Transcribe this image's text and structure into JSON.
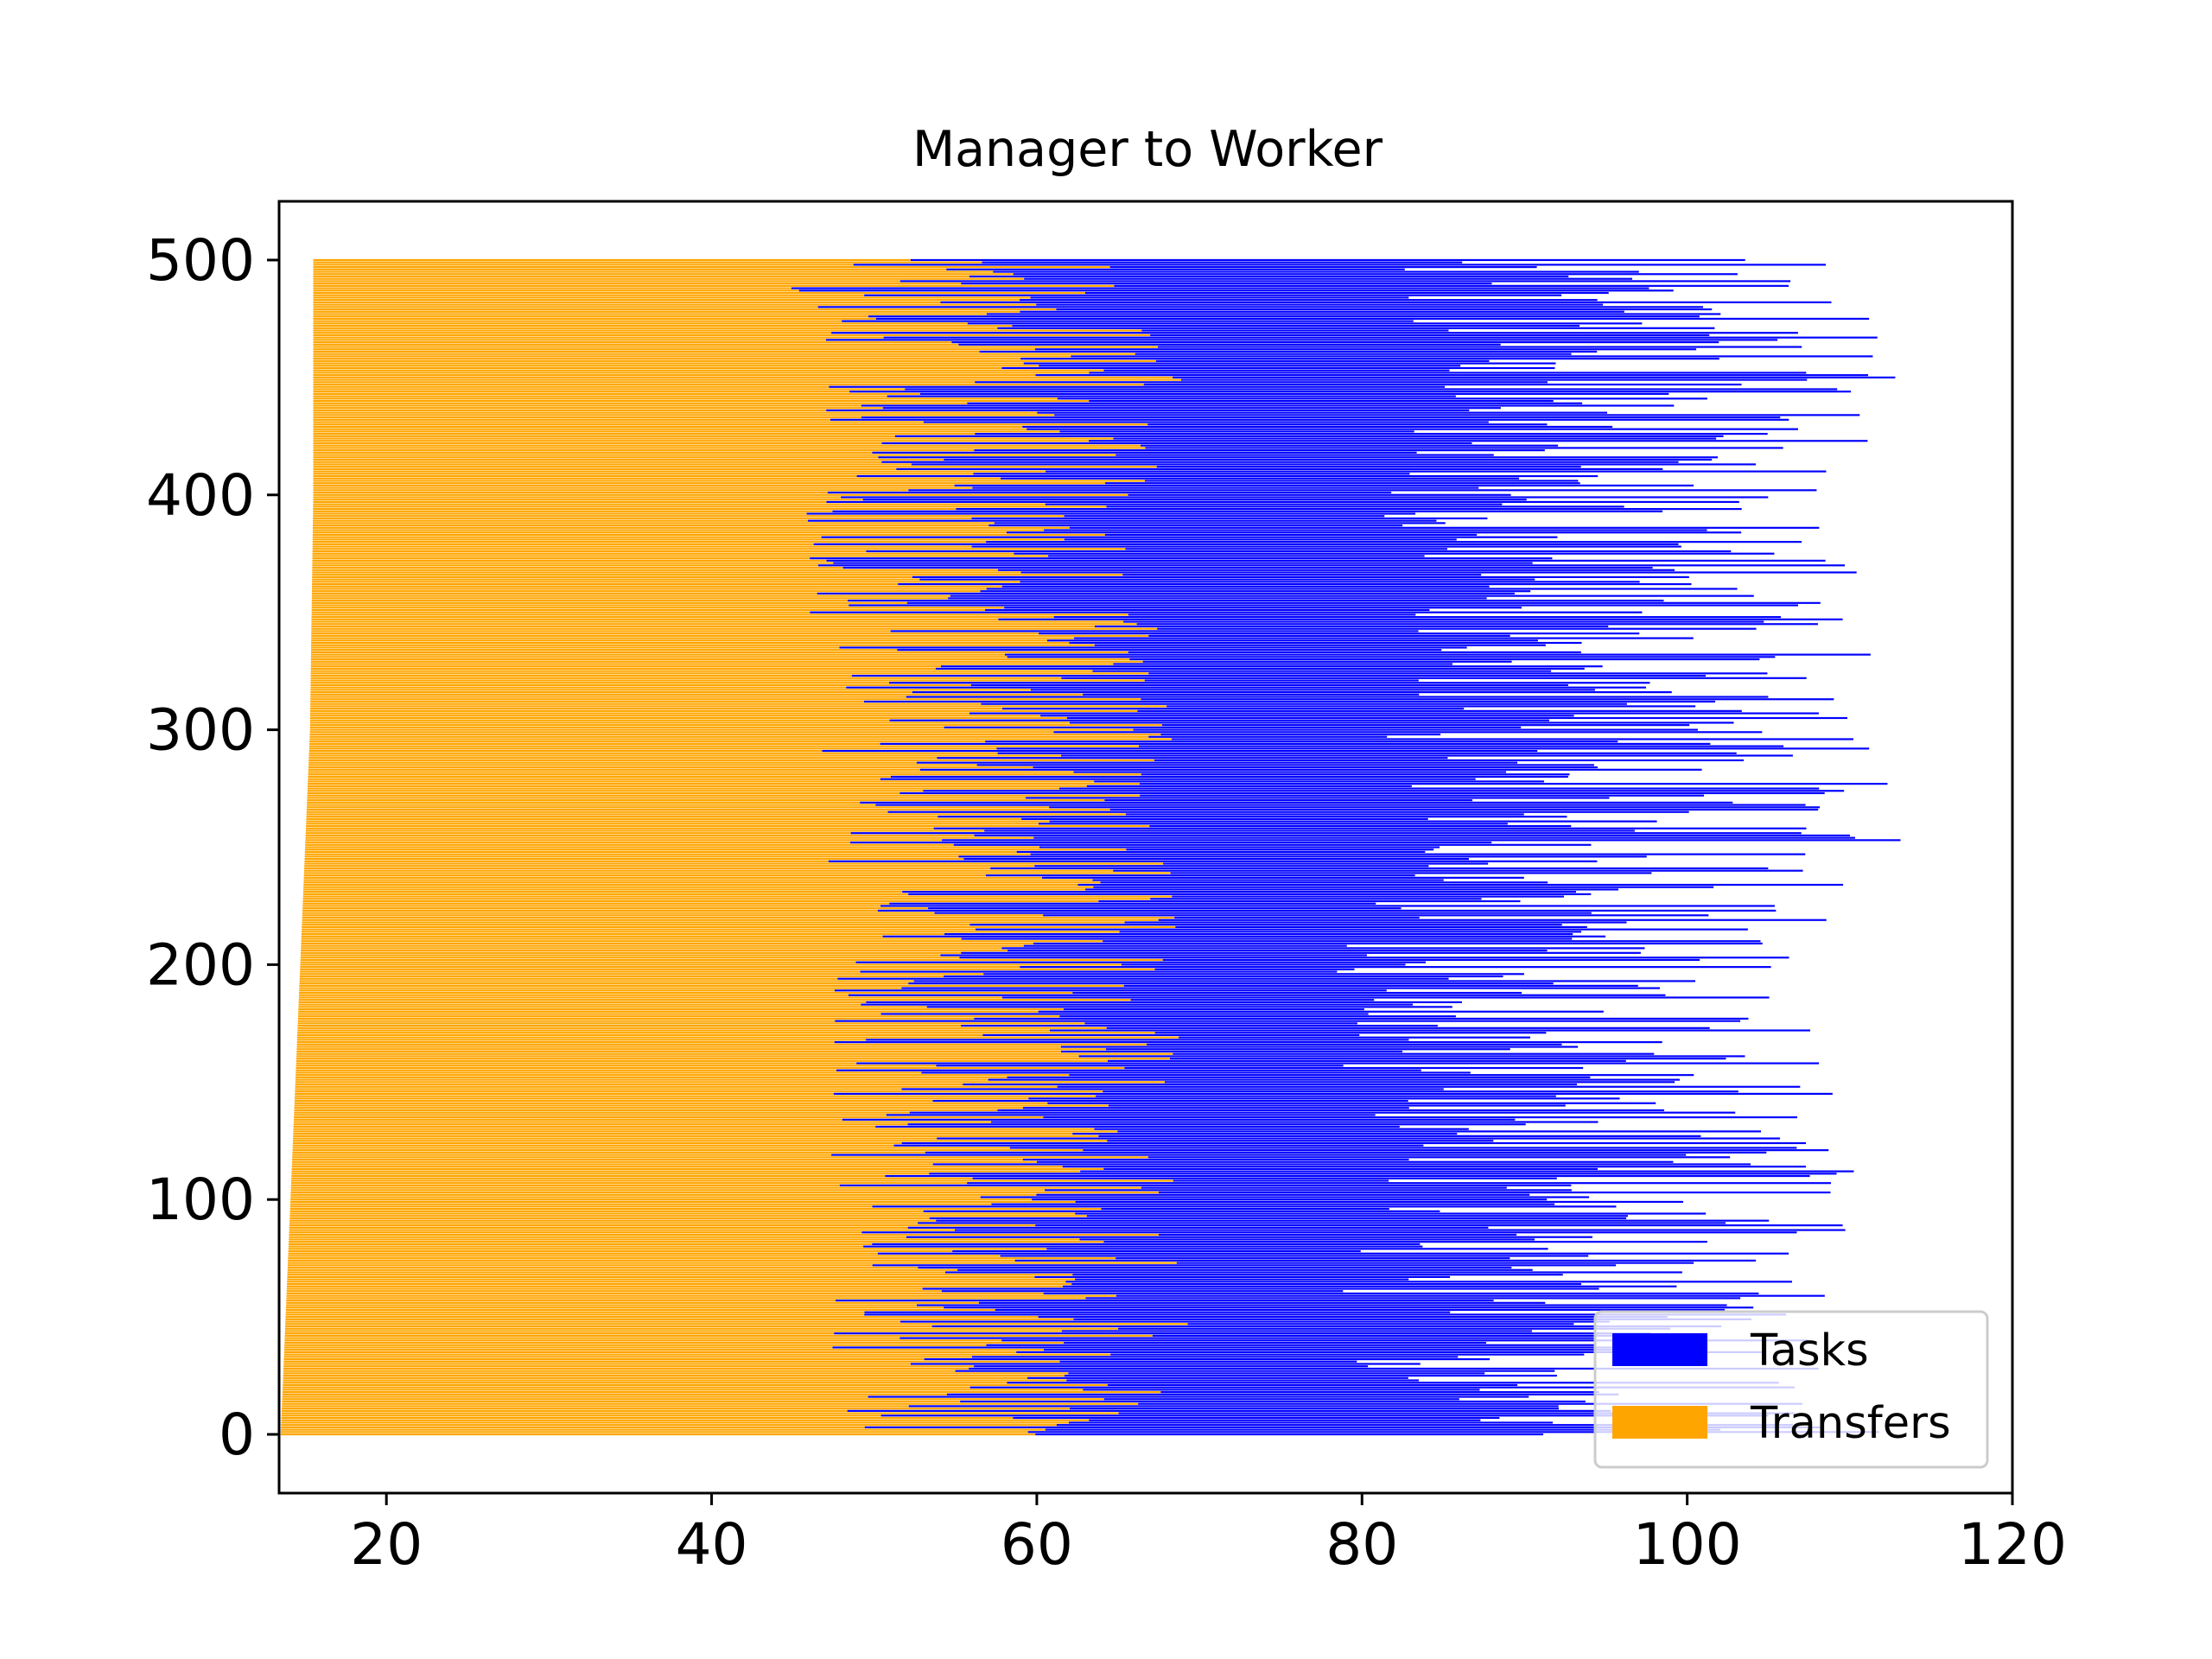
{
  "chart_data": {
    "type": "bar",
    "orientation": "horizontal",
    "stacked": true,
    "title": "Manager to Worker",
    "xlabel": "",
    "ylabel": "",
    "xlim": [
      13.4,
      120
    ],
    "ylim": [
      -25,
      525
    ],
    "x_ticks": [
      20,
      40,
      60,
      80,
      100,
      120
    ],
    "y_ticks": [
      0,
      100,
      200,
      300,
      400,
      500
    ],
    "grid": false,
    "legend_position": "lower right",
    "bar_count": 501,
    "series": [
      {
        "name": "Transfers",
        "color": "#ffa500",
        "description": "bar start offset from zero axis (left edge of each bar)",
        "start_at_0": 13.5,
        "start_at_500": 15.5,
        "values_sampled": {
          "0": [
            13.5,
            50.5
          ],
          "50": [
            13.8,
            52.5
          ],
          "100": [
            14.1,
            52.0
          ],
          "150": [
            14.4,
            51.5
          ],
          "200": [
            14.7,
            52.5
          ],
          "250": [
            15.0,
            52.0
          ],
          "300": [
            15.3,
            51.5
          ],
          "350": [
            15.4,
            51.0
          ],
          "400": [
            15.5,
            50.5
          ],
          "450": [
            15.5,
            52.0
          ],
          "500": [
            15.5,
            49.0
          ]
        }
      },
      {
        "name": "Tasks",
        "color": "#0000ff",
        "values_sampled": {
          "0": [
            50.5,
            107.0
          ],
          "50": [
            52.5,
            103.0
          ],
          "100": [
            52.0,
            106.0
          ],
          "150": [
            51.5,
            104.0
          ],
          "200": [
            52.5,
            102.0
          ],
          "250": [
            52.0,
            109.0
          ],
          "300": [
            51.5,
            106.0
          ],
          "350": [
            51.0,
            108.0
          ],
          "400": [
            50.5,
            106.0
          ],
          "450": [
            52.0,
            109.0
          ],
          "500": [
            49.0,
            105.0
          ]
        }
      }
    ]
  },
  "colors": {
    "tasks": "#0000ff",
    "transfers": "#ffa500",
    "axis": "#000000",
    "background": "#ffffff"
  }
}
